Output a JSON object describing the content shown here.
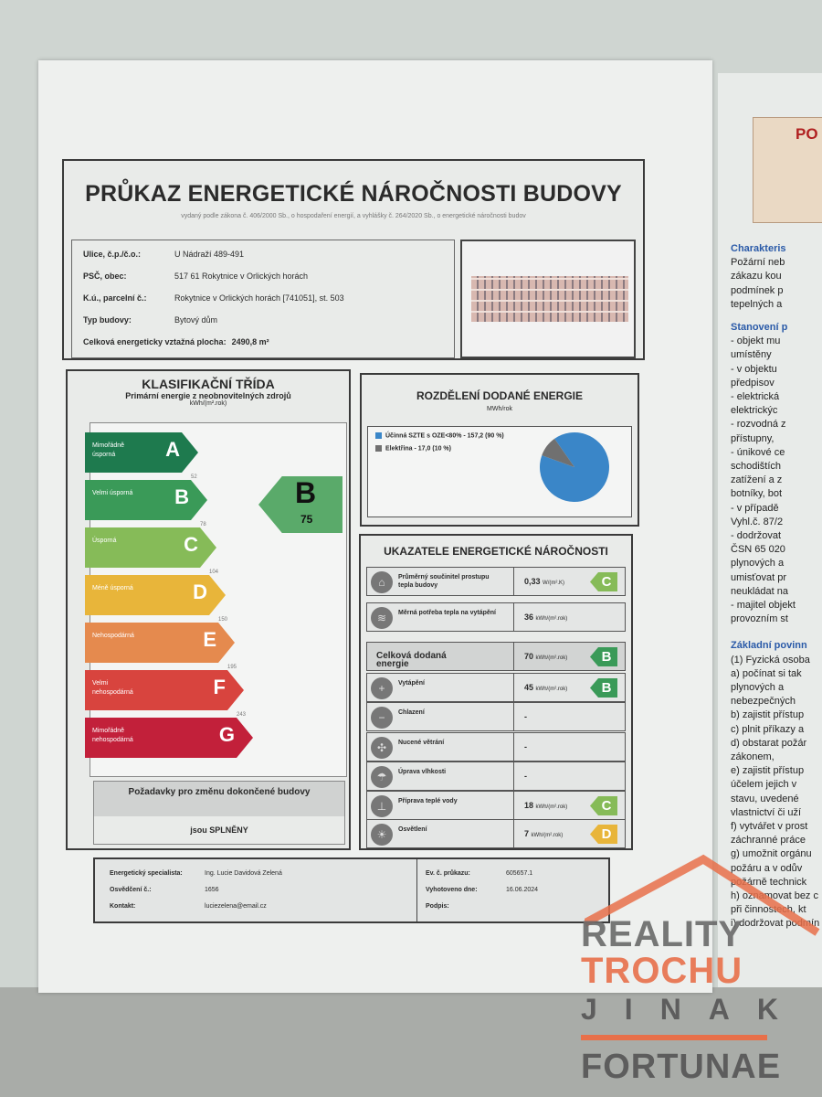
{
  "header": {
    "title": "PRŮKAZ ENERGETICKÉ NÁROČNOSTI BUDOVY",
    "subtitle": "vydaný podle zákona č. 406/2000 Sb., o hospodaření energií, a vyhlášky č. 264/2020 Sb., o energetické náročnosti budov"
  },
  "building": [
    {
      "label": "Ulice, č.p./č.o.:",
      "value": "U Nádraží 489-491"
    },
    {
      "label": "PSČ, obec:",
      "value": "517 61 Rokytnice v Orlických horách"
    },
    {
      "label": "K.ú., parcelní č.:",
      "value": "Rokytnice v Orlických horách [741051], st. 503"
    },
    {
      "label": "Typ budovy:",
      "value": "Bytový dům"
    },
    {
      "label": "Celková energeticky vztažná plocha:",
      "value": "2490,8 m²"
    }
  ],
  "classification": {
    "title": "KLASIFIKAČNÍ TŘÍDA",
    "subtitle": "Primární energie z neobnovitelných zdrojů",
    "unit": "kWh/(m².rok)",
    "classes": [
      {
        "letter": "A",
        "desc": "Mimořádně úsporná",
        "color": "#1e7a4e",
        "threshold": "52"
      },
      {
        "letter": "B",
        "desc": "Velmi úsporná",
        "color": "#3a9a58",
        "threshold": "78"
      },
      {
        "letter": "C",
        "desc": "Úsporná",
        "color": "#86bb58",
        "threshold": "104"
      },
      {
        "letter": "D",
        "desc": "Méně úsporná",
        "color": "#e8b53a",
        "threshold": "150"
      },
      {
        "letter": "E",
        "desc": "Nehospodárná",
        "color": "#e58a4e",
        "threshold": "195"
      },
      {
        "letter": "F",
        "desc": "Velmi nehospodárná",
        "color": "#d8443e",
        "threshold": "243"
      },
      {
        "letter": "G",
        "desc": "Mimořádně nehospodárná",
        "color": "#c2203a",
        "threshold": ""
      }
    ],
    "current": {
      "letter": "B",
      "value": "75"
    },
    "requirements": {
      "label": "Požadavky pro změnu dokončené budovy",
      "result": "jsou SPLNĚNY"
    }
  },
  "distribution": {
    "title": "ROZDĚLENÍ DODANÉ ENERGIE",
    "unit": "MWh/rok",
    "chart_data": {
      "type": "pie",
      "series": [
        {
          "name": "Účinná SZTE s OZE<80% - 157,2 (90 %)",
          "value": 157.2,
          "percent": 90,
          "color": "#3a86c8"
        },
        {
          "name": "Elektřina - 17,0 (10 %)",
          "value": 17.0,
          "percent": 10,
          "color": "#707070"
        }
      ],
      "legend": "left"
    }
  },
  "indicators": {
    "title": "UKAZATELE ENERGETICKÉ NÁROČNOSTI",
    "rows": [
      {
        "icon": "house-icon",
        "name": "Průměrný součinitel prostupu tepla budovy",
        "value": "0,33",
        "unit": "W/(m².K)",
        "class": "C",
        "color": "#86bb58"
      },
      {
        "icon": "heat-need-icon",
        "name": "Měrná potřeba tepla na vytápění",
        "value": "36",
        "unit": "kWh/(m².rok)",
        "class": "",
        "color": ""
      },
      {
        "icon": "",
        "name": "Celková dodaná energie",
        "value": "70",
        "unit": "kWh/(m².rok)",
        "class": "B",
        "color": "#3a9a58"
      },
      {
        "icon": "thermometer-plus-icon",
        "name": "Vytápění",
        "value": "45",
        "unit": "kWh/(m².rok)",
        "class": "B",
        "color": "#3a9a58"
      },
      {
        "icon": "thermometer-minus-icon",
        "name": "Chlazení",
        "value": "-",
        "unit": "",
        "class": "",
        "color": ""
      },
      {
        "icon": "fan-icon",
        "name": "Nucené větrání",
        "value": "-",
        "unit": "",
        "class": "",
        "color": ""
      },
      {
        "icon": "humidity-icon",
        "name": "Úprava vlhkosti",
        "value": "-",
        "unit": "",
        "class": "",
        "color": ""
      },
      {
        "icon": "faucet-icon",
        "name": "Příprava teplé vody",
        "value": "18",
        "unit": "kWh/(m².rok)",
        "class": "C",
        "color": "#86bb58"
      },
      {
        "icon": "bulb-icon",
        "name": "Osvětlení",
        "value": "7",
        "unit": "kWh/(m².rok)",
        "class": "D",
        "color": "#e8b53a"
      }
    ]
  },
  "footer": {
    "specialist_label": "Energetický specialista:",
    "specialist": "Ing. Lucie Davidová Zelená",
    "cert_label": "Osvědčení č.:",
    "cert": "1656",
    "contact_label": "Kontakt:",
    "contact": "luciezelena@email.cz",
    "ev_label": "Ev. č. průkazu:",
    "ev": "605657.1",
    "date_label": "Vyhotoveno dne:",
    "date": "16.06.2024",
    "sign_label": "Podpis:"
  },
  "side_doc": {
    "heading": "PO",
    "lines": [
      "Charakteris",
      "Požární neb",
      "zákazu kou",
      "podmínek p",
      "tepelných a",
      "Stanovení p",
      "-   objekt mu",
      "     umístěny",
      "-   v objektu",
      "     předpisov",
      "-   elektrická",
      "     elektrickýc",
      "-   rozvodná z",
      "     přístupny,",
      "-   únikové ce",
      "     schodištích",
      "     zatížení a z",
      "     botníky, bot",
      "-   v případě",
      "     Vyhl.č. 87/2",
      "-   dodržovat",
      "     ČSN 65 020",
      "     plynových a",
      "     umisťovat pr",
      "     neukládat na",
      "-   majitel objekt",
      "     provozním st",
      "Základní povinn",
      "(1) Fyzická osoba",
      "a)  počínat si tak",
      "     plynových a",
      "     nebezpečných",
      "b)  zajistit přístup",
      "c)  plnit příkazy a",
      "d)  obstarat požár",
      "     zákonem,",
      "e)  zajistit přístup",
      "     účelem jejich v",
      "     stavu, uvedené",
      "     vlastnictví či uží",
      "f)   vytvářet v prost",
      "     záchranné práce",
      "g)  umožnit orgánu",
      "     požáru a v odův",
      "     požárně technick",
      "h)  oznamovat bez c",
      "     při činnostech, kt",
      "i)   dodržovat podmín"
    ]
  },
  "watermark": {
    "line1": "REALITY",
    "line2": "TROCHU",
    "line3": "JINAK",
    "brand": "FORTUNAE",
    "gray": "#6a6a6a",
    "orange": "#e8704a"
  }
}
